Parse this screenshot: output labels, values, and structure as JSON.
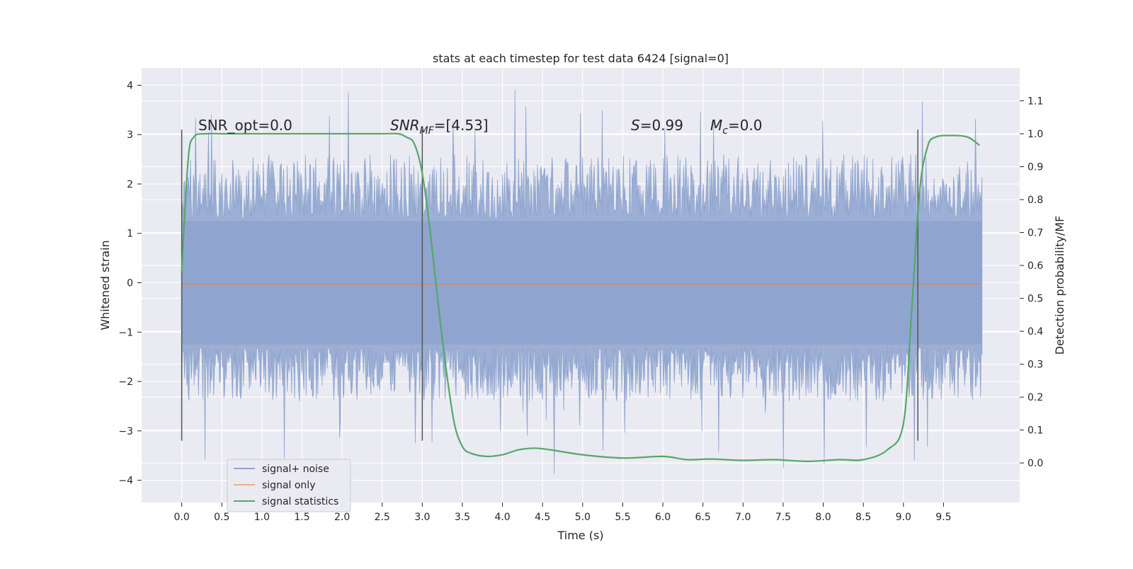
{
  "chart_data": {
    "type": "line",
    "title": "stats at each timestep for test data 6424 [signal=0]",
    "xlabel": "Time (s)",
    "ylabel_left": "Whitened strain",
    "ylabel_right": "Detection probability/MF",
    "xlim": [
      -0.5,
      10.45
    ],
    "ylim_left": [
      -4.45,
      4.35
    ],
    "ylim_right": [
      -0.12,
      1.2
    ],
    "x_ticks": [
      "0.0",
      "0.5",
      "1.0",
      "1.5",
      "2.0",
      "2.5",
      "3.0",
      "3.5",
      "4.0",
      "4.5",
      "5.0",
      "5.5",
      "6.0",
      "6.5",
      "7.0",
      "7.5",
      "8.0",
      "8.5",
      "9.0",
      "9.5"
    ],
    "y_ticks_left": [
      "−4",
      "−3",
      "−2",
      "−1",
      "0",
      "1",
      "2",
      "3",
      "4"
    ],
    "y_ticks_right": [
      "0.0",
      "0.1",
      "0.2",
      "0.3",
      "0.4",
      "0.5",
      "0.6",
      "0.7",
      "0.8",
      "0.9",
      "1.0",
      "1.1"
    ],
    "grid": true,
    "legend_position": "lower-left",
    "annotations": [
      "SNR_opt=0.0",
      "SNR_MF=[4.53]",
      "S=0.99",
      "M_c=0.0"
    ],
    "vertical_markers": [
      0.0,
      3.0,
      9.18
    ],
    "series": [
      {
        "name": "signal+ noise",
        "color": "#8fa5cf",
        "note_shape": "dense noise band",
        "x_range": [
          0.0,
          9.98
        ],
        "band_core": [
          -1.25,
          1.25
        ],
        "band_typical_extent": [
          -2.4,
          2.6
        ],
        "peak_max": 4.0,
        "peak_min": -4.05
      },
      {
        "name": "signal only",
        "color": "#dd8452",
        "x": [
          0.0,
          9.98
        ],
        "y": [
          -0.03,
          -0.03
        ]
      },
      {
        "name": "signal statistics",
        "color": "#55a868",
        "axis": "right",
        "x": [
          0.0,
          0.08,
          0.15,
          0.3,
          0.5,
          1.0,
          1.5,
          2.0,
          2.5,
          2.7,
          2.8,
          2.9,
          3.0,
          3.1,
          3.2,
          3.3,
          3.4,
          3.5,
          3.6,
          3.8,
          4.0,
          4.2,
          4.4,
          4.6,
          5.0,
          5.5,
          6.0,
          6.3,
          6.6,
          7.0,
          7.4,
          7.8,
          8.2,
          8.5,
          8.8,
          9.0,
          9.1,
          9.2,
          9.3,
          9.4,
          9.6,
          9.8,
          9.95
        ],
        "y": [
          0.58,
          0.92,
          0.99,
          1.0,
          1.0,
          1.0,
          1.0,
          1.0,
          1.0,
          1.0,
          0.99,
          0.97,
          0.88,
          0.7,
          0.48,
          0.28,
          0.12,
          0.05,
          0.03,
          0.02,
          0.025,
          0.04,
          0.045,
          0.04,
          0.025,
          0.015,
          0.02,
          0.01,
          0.012,
          0.008,
          0.01,
          0.005,
          0.01,
          0.01,
          0.04,
          0.12,
          0.45,
          0.82,
          0.96,
          0.99,
          0.995,
          0.99,
          0.965
        ]
      }
    ]
  }
}
